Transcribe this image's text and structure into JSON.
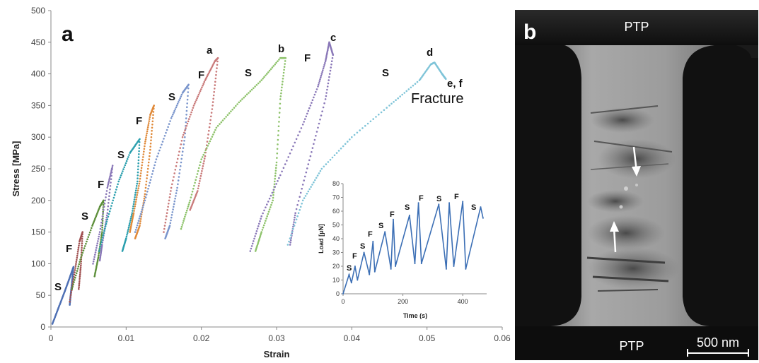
{
  "chart_data": [
    {
      "panel": "a",
      "type": "scatter",
      "xlabel": "Strain",
      "ylabel": "Stress [MPa]",
      "xlim": [
        0,
        0.06
      ],
      "ylim": [
        0,
        500
      ],
      "xticks": [
        "0",
        "0.01",
        "0.02",
        "0.03",
        "0.04",
        "0.05",
        "0.06"
      ],
      "yticks": [
        "0",
        "50",
        "100",
        "150",
        "200",
        "250",
        "300",
        "350",
        "400",
        "450",
        "500"
      ],
      "grid": false,
      "series": [
        {
          "color": "#4d6fb4",
          "points": [
            [
              0.0002,
              5
            ],
            [
              0.001,
              30
            ],
            [
              0.0018,
              55
            ],
            [
              0.0025,
              78
            ],
            [
              0.003,
              95
            ],
            [
              0.0027,
              60
            ],
            [
              0.0025,
              35
            ]
          ]
        },
        {
          "color": "#a05050",
          "points": [
            [
              0.0025,
              40
            ],
            [
              0.0032,
              90
            ],
            [
              0.0038,
              135
            ],
            [
              0.0042,
              150
            ],
            [
              0.004,
              100
            ],
            [
              0.0037,
              60
            ]
          ]
        },
        {
          "color": "#5d8f3a",
          "points": [
            [
              0.0028,
              60
            ],
            [
              0.004,
              110
            ],
            [
              0.0055,
              160
            ],
            [
              0.0065,
              190
            ],
            [
              0.007,
              200
            ],
            [
              0.0068,
              150
            ],
            [
              0.0063,
              110
            ],
            [
              0.0058,
              80
            ]
          ]
        },
        {
          "color": "#8a78b8",
          "points": [
            [
              0.0056,
              100
            ],
            [
              0.0065,
              150
            ],
            [
              0.0075,
              220
            ],
            [
              0.0082,
              255
            ],
            [
              0.0075,
              180
            ],
            [
              0.0068,
              130
            ],
            [
              0.0065,
              105
            ]
          ]
        },
        {
          "color": "#2b9fae",
          "points": [
            [
              0.0064,
              120
            ],
            [
              0.0075,
              170
            ],
            [
              0.009,
              230
            ],
            [
              0.0105,
              275
            ],
            [
              0.0118,
              297
            ],
            [
              0.0115,
              230
            ],
            [
              0.0108,
              180
            ],
            [
              0.01,
              140
            ],
            [
              0.0095,
              120
            ]
          ]
        },
        {
          "color": "#e08a3a",
          "points": [
            [
              0.0105,
              150
            ],
            [
              0.011,
              180
            ],
            [
              0.0118,
              230
            ],
            [
              0.0125,
              290
            ],
            [
              0.0132,
              335
            ],
            [
              0.0137,
              350
            ],
            [
              0.0132,
              280
            ],
            [
              0.0125,
              210
            ],
            [
              0.0118,
              160
            ],
            [
              0.0112,
              140
            ]
          ]
        },
        {
          "color": "#7a95cc",
          "points": [
            [
              0.0112,
              150
            ],
            [
              0.0125,
              200
            ],
            [
              0.014,
              265
            ],
            [
              0.016,
              330
            ],
            [
              0.0175,
              370
            ],
            [
              0.0183,
              383
            ],
            [
              0.0178,
              300
            ],
            [
              0.0168,
              220
            ],
            [
              0.0158,
              160
            ],
            [
              0.0152,
              140
            ]
          ]
        },
        {
          "color": "#c97a7a",
          "points": [
            [
              0.015,
              150
            ],
            [
              0.016,
              220
            ],
            [
              0.0175,
              300
            ],
            [
              0.019,
              350
            ],
            [
              0.0205,
              390
            ],
            [
              0.0218,
              420
            ],
            [
              0.0222,
              425
            ],
            [
              0.0215,
              350
            ],
            [
              0.0205,
              270
            ],
            [
              0.0195,
              215
            ],
            [
              0.0185,
              185
            ]
          ]
        },
        {
          "color": "#8dc26a",
          "points": [
            [
              0.0173,
              155
            ],
            [
              0.0185,
              200
            ],
            [
              0.02,
              265
            ],
            [
              0.022,
              315
            ],
            [
              0.025,
              355
            ],
            [
              0.028,
              390
            ],
            [
              0.0305,
              425
            ],
            [
              0.0312,
              425
            ],
            [
              0.0305,
              360
            ],
            [
              0.03,
              260
            ],
            [
              0.0295,
              200
            ],
            [
              0.028,
              150
            ],
            [
              0.0272,
              120
            ]
          ]
        },
        {
          "color": "#8a78b8",
          "points": [
            [
              0.0265,
              120
            ],
            [
              0.028,
              175
            ],
            [
              0.0305,
              240
            ],
            [
              0.0335,
              320
            ],
            [
              0.0355,
              380
            ],
            [
              0.0365,
              420
            ],
            [
              0.037,
              450
            ],
            [
              0.0375,
              430
            ],
            [
              0.0365,
              360
            ],
            [
              0.0345,
              270
            ],
            [
              0.0325,
              180
            ],
            [
              0.0318,
              130
            ]
          ]
        },
        {
          "color": "#7fc4d8",
          "points": [
            [
              0.0315,
              130
            ],
            [
              0.0335,
              200
            ],
            [
              0.036,
              250
            ],
            [
              0.04,
              300
            ],
            [
              0.045,
              350
            ],
            [
              0.049,
              390
            ],
            [
              0.0505,
              415
            ],
            [
              0.051,
              418
            ],
            [
              0.052,
              400
            ],
            [
              0.0525,
              392
            ]
          ]
        }
      ],
      "annotations": [
        "S",
        "F",
        "S",
        "F",
        "S",
        "F",
        "S",
        "F",
        "S",
        "F",
        "a",
        "S",
        "b",
        "F",
        "c",
        "S",
        "d",
        "e, f",
        "Fracture"
      ]
    },
    {
      "panel": "inset",
      "type": "line",
      "xlabel": "Time (s)",
      "ylabel": "Load [µN]",
      "xlim": [
        0,
        480
      ],
      "ylim": [
        0,
        80
      ],
      "xticks": [
        "0",
        "200",
        "400"
      ],
      "yticks": [
        "0",
        "10",
        "20",
        "30",
        "40",
        "50",
        "60",
        "70",
        "80"
      ],
      "color": "#3c6fb5",
      "points": [
        [
          0,
          0
        ],
        [
          20,
          14
        ],
        [
          28,
          8
        ],
        [
          40,
          20
        ],
        [
          48,
          10
        ],
        [
          70,
          30
        ],
        [
          88,
          14
        ],
        [
          100,
          38
        ],
        [
          106,
          16
        ],
        [
          140,
          45
        ],
        [
          160,
          18
        ],
        [
          168,
          54
        ],
        [
          175,
          20
        ],
        [
          222,
          57
        ],
        [
          240,
          22
        ],
        [
          252,
          66
        ],
        [
          262,
          22
        ],
        [
          320,
          65
        ],
        [
          345,
          18
        ],
        [
          355,
          66
        ],
        [
          370,
          20
        ],
        [
          400,
          67
        ],
        [
          410,
          18
        ],
        [
          460,
          63
        ],
        [
          468,
          55
        ]
      ],
      "annotations": [
        "S",
        "F",
        "S",
        "F",
        "S",
        "F",
        "S",
        "F",
        "S",
        "F",
        "S",
        "F",
        "S"
      ]
    }
  ],
  "labels": {
    "panel_a": "a",
    "panel_b": "b",
    "ptp_top": "PTP",
    "ptp_bottom": "PTP",
    "scale_bar": "500 nm",
    "fracture": "Fracture"
  },
  "colors": {
    "tem_dark": "#1a1a1a",
    "tem_neck": "#9a9a9a"
  }
}
